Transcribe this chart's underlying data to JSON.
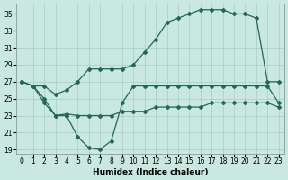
{
  "xlabel": "Humidex (Indice chaleur)",
  "bg_color": "#c8e8e0",
  "line_color": "#206858",
  "grid_color": "#a8ccc4",
  "xlim": [
    -0.5,
    23.5
  ],
  "ylim": [
    18.5,
    36.2
  ],
  "yticks": [
    19,
    21,
    23,
    25,
    27,
    29,
    31,
    33,
    35
  ],
  "xticks": [
    0,
    1,
    2,
    3,
    4,
    5,
    6,
    7,
    8,
    9,
    10,
    11,
    12,
    13,
    14,
    15,
    16,
    17,
    18,
    19,
    20,
    21,
    22,
    23
  ],
  "s1_x": [
    0,
    1,
    2,
    3,
    4,
    5,
    6,
    7,
    8,
    9,
    10,
    11,
    12,
    13,
    14,
    15,
    16,
    17,
    18,
    19,
    20,
    21,
    22,
    23
  ],
  "s1_y": [
    27.0,
    26.5,
    24.5,
    23.0,
    23.0,
    20.5,
    19.2,
    19.0,
    20.0,
    24.5,
    26.5,
    26.5,
    26.5,
    26.5,
    26.5,
    26.5,
    26.5,
    26.5,
    26.5,
    26.5,
    26.5,
    26.5,
    26.5,
    24.5
  ],
  "s2_x": [
    0,
    1,
    2,
    3,
    4,
    5,
    6,
    7,
    8,
    9,
    10,
    11,
    12,
    13,
    14,
    15,
    16,
    17,
    18,
    19,
    20,
    21,
    22,
    23
  ],
  "s2_y": [
    27.0,
    26.5,
    25.0,
    23.0,
    23.2,
    23.0,
    23.0,
    23.0,
    23.0,
    23.5,
    23.5,
    23.5,
    24.0,
    24.0,
    24.0,
    24.0,
    24.0,
    24.5,
    24.5,
    24.5,
    24.5,
    24.5,
    24.5,
    24.0
  ],
  "s3_x": [
    0,
    1,
    2,
    3,
    4,
    5,
    6,
    7,
    8,
    9,
    10,
    11,
    12,
    13,
    14,
    15,
    16,
    17,
    18,
    19,
    20,
    21,
    22,
    23
  ],
  "s3_y": [
    27.0,
    26.5,
    26.5,
    25.5,
    26.0,
    27.0,
    28.5,
    28.5,
    28.5,
    28.5,
    29.0,
    30.5,
    32.0,
    34.0,
    34.5,
    35.0,
    35.5,
    35.5,
    35.5,
    35.0,
    35.0,
    34.5,
    27.0,
    27.0
  ]
}
